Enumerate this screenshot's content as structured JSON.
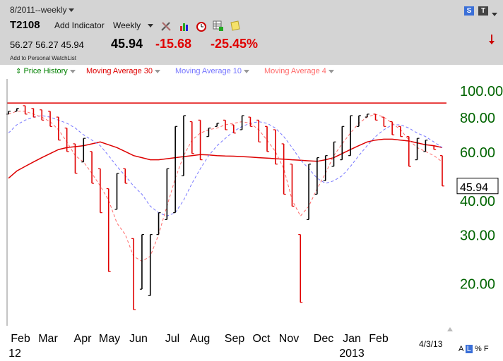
{
  "header": {
    "period_label": "8/2011--weekly",
    "symbol": "T2108",
    "add_indicator_label": "Add Indicator",
    "frequency": "Weekly",
    "quote_values": "56.27 56.27 45.94",
    "last_price": "45.94",
    "change": "-15.68",
    "change_pct": "-25.45%",
    "watchlist_label": "Add to Personal WatchList",
    "badge_s": "S",
    "badge_t": "T"
  },
  "legend": {
    "price_history": "Price History",
    "ma30": "Moving Average 30",
    "ma10": "Moving Average 10",
    "ma4": "Moving Average 4"
  },
  "footer": {
    "date_stamp": "4/3/13",
    "scale_a": "A",
    "scale_l": "L",
    "scale_pct": "%",
    "scale_f": "F"
  },
  "colors": {
    "up": "#000000",
    "down": "#e00000",
    "ma30": "#dd0000",
    "ma10": "#7777ff",
    "ma4": "#ff6a6a",
    "axis_label": "#006400",
    "threshold_line": "#e00000"
  },
  "chart_data": {
    "type": "ohlc",
    "scale": "log",
    "ylim": [
      14,
      110
    ],
    "y_ticks": [
      "100.00",
      "80.00",
      "60.00",
      "40.00",
      "30.00",
      "20.00"
    ],
    "y_tick_values": [
      100,
      80,
      60,
      40,
      30,
      20
    ],
    "last_value_label": "45.94",
    "threshold": 90,
    "x_labels": [
      "Feb",
      "Mar",
      "Apr",
      "May",
      "Jun",
      "Jul",
      "Aug",
      "Sep",
      "Oct",
      "Nov",
      "Dec",
      "Jan",
      "Feb"
    ],
    "year_labels": [
      "12",
      "2013"
    ],
    "bars": [
      [
        82,
        84
      ],
      [
        84,
        86
      ],
      [
        82,
        88
      ],
      [
        80,
        86
      ],
      [
        78,
        85
      ],
      [
        74,
        84
      ],
      [
        66,
        80
      ],
      [
        60,
        73
      ],
      [
        50,
        64
      ],
      [
        55,
        67
      ],
      [
        46,
        60
      ],
      [
        36,
        52
      ],
      [
        22,
        44
      ],
      [
        37,
        50
      ],
      [
        46,
        52
      ],
      [
        16,
        29
      ],
      [
        19,
        30
      ],
      [
        18,
        30
      ],
      [
        30,
        36
      ],
      [
        34,
        52
      ],
      [
        36,
        74
      ],
      [
        49,
        81
      ],
      [
        59,
        77
      ],
      [
        56,
        78
      ],
      [
        68,
        73
      ],
      [
        74,
        76
      ],
      [
        72,
        78
      ],
      [
        70,
        75
      ],
      [
        72,
        81
      ],
      [
        74,
        80
      ],
      [
        65,
        78
      ],
      [
        60,
        74
      ],
      [
        54,
        72
      ],
      [
        42,
        64
      ],
      [
        38,
        54
      ],
      [
        17,
        30
      ],
      [
        34,
        54
      ],
      [
        42,
        57
      ],
      [
        47,
        58
      ],
      [
        53,
        65
      ],
      [
        56,
        74
      ],
      [
        58,
        81
      ],
      [
        74,
        81
      ],
      [
        80,
        82
      ],
      [
        78,
        82
      ],
      [
        74,
        80
      ],
      [
        69,
        77
      ],
      [
        68,
        74
      ],
      [
        53,
        68
      ],
      [
        56,
        67
      ],
      [
        60,
        66
      ],
      [
        61,
        63
      ],
      [
        45,
        58
      ]
    ],
    "bar_directions": [
      "up",
      "up",
      "down",
      "down",
      "down",
      "down",
      "down",
      "down",
      "down",
      "up",
      "down",
      "down",
      "down",
      "up",
      "down",
      "down",
      "up",
      "up",
      "up",
      "up",
      "up",
      "up",
      "down",
      "down",
      "up",
      "up",
      "down",
      "down",
      "up",
      "down",
      "down",
      "down",
      "down",
      "down",
      "down",
      "down",
      "up",
      "up",
      "up",
      "up",
      "up",
      "up",
      "up",
      "up",
      "down",
      "down",
      "down",
      "down",
      "down",
      "up",
      "up",
      "down",
      "down"
    ],
    "ma30": [
      48,
      51,
      53,
      55,
      57,
      59,
      61,
      62,
      62.5,
      63,
      64,
      65,
      63.5,
      62,
      60,
      58,
      57,
      56,
      56,
      56.5,
      57,
      57.5,
      58,
      58.5,
      58.3,
      58,
      57.8,
      57.7,
      57.5,
      57.3,
      57,
      56.8,
      56.5,
      56.3,
      56,
      55.8,
      55.5,
      55.3,
      56,
      57,
      59,
      61,
      63,
      65,
      66,
      66.5,
      66.5,
      66,
      65.5,
      64.5,
      63.5,
      63,
      62
    ],
    "ma10": [
      70,
      75,
      78,
      80,
      81,
      80,
      78,
      76,
      73,
      69,
      66,
      63,
      58,
      53,
      49,
      45,
      42,
      38,
      36,
      35,
      36,
      40,
      46,
      52,
      58,
      63,
      67,
      71,
      74,
      76,
      77,
      76,
      73,
      68,
      62,
      56,
      52,
      48,
      46,
      47,
      49,
      53,
      58,
      63,
      68,
      72,
      75,
      75,
      73,
      70,
      68,
      65,
      62
    ],
    "ma4": [
      82,
      84,
      84,
      82,
      80,
      77,
      72,
      65,
      58,
      55,
      50,
      45,
      40,
      33,
      30,
      25,
      24,
      25,
      30,
      38,
      48,
      58,
      66,
      70,
      72,
      73,
      75,
      76,
      77,
      76,
      72,
      66,
      60,
      52,
      40,
      35,
      38,
      44,
      50,
      58,
      64,
      70,
      76,
      80,
      82,
      80,
      76,
      72,
      66,
      62,
      60,
      58,
      55
    ]
  }
}
